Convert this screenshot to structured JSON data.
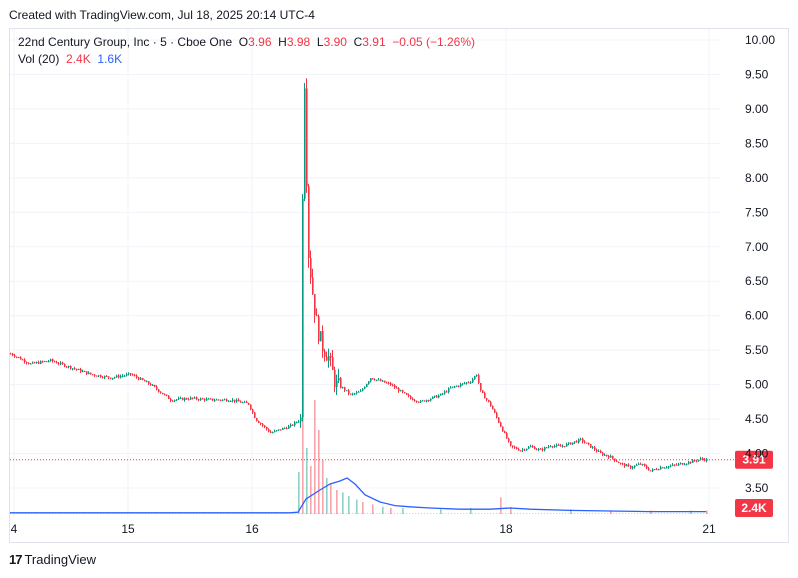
{
  "header": {
    "text": "Created with TradingView.com, Jul 18, 2025 20:14 UTC-4"
  },
  "legend": {
    "symbol": "22nd Century Group, Inc · 5 · Cboe One",
    "o_label": "O",
    "o_value": "3.96",
    "h_label": "H",
    "h_value": "3.98",
    "l_label": "L",
    "l_value": "3.90",
    "c_label": "C",
    "c_value": "3.91",
    "change": "−0.05 (−1.26%)",
    "vol_label": "Vol (20)",
    "vol_value": "2.4K",
    "vol_ma_value": "1.6K"
  },
  "footer": {
    "brand": "TradingView"
  },
  "colors": {
    "up": "#089981",
    "down": "#f23645",
    "vol_ma": "#2962ff",
    "last_price": "#f23645"
  },
  "chart_data": {
    "type": "candlestick",
    "yaxis_ticks": [
      "10.00",
      "9.50",
      "9.00",
      "8.50",
      "8.00",
      "7.50",
      "7.00",
      "6.50",
      "6.00",
      "5.50",
      "5.00",
      "4.50",
      "4.00",
      "3.50"
    ],
    "ylim": [
      3.3,
      10.05
    ],
    "xaxis_ticks": [
      "4",
      "15",
      "16",
      "18",
      "21"
    ],
    "last_price_label": "3.91",
    "last_volume_label": "2.4K",
    "grid": true,
    "price_path": [
      [
        0,
        5.45
      ],
      [
        20,
        5.3
      ],
      [
        40,
        5.35
      ],
      [
        60,
        5.25
      ],
      [
        80,
        5.15
      ],
      [
        100,
        5.1
      ],
      [
        120,
        5.15
      ],
      [
        140,
        5.0
      ],
      [
        160,
        4.78
      ],
      [
        180,
        4.8
      ],
      [
        200,
        4.78
      ],
      [
        220,
        4.78
      ],
      [
        238,
        4.72
      ],
      [
        245,
        4.5
      ],
      [
        260,
        4.3
      ],
      [
        280,
        4.4
      ],
      [
        290,
        4.5
      ],
      [
        292,
        7.8
      ],
      [
        294,
        9.4
      ],
      [
        296,
        8.0
      ],
      [
        298,
        6.9
      ],
      [
        303,
        6.2
      ],
      [
        307,
        5.8
      ],
      [
        312,
        5.55
      ],
      [
        318,
        5.4
      ],
      [
        325,
        5.0
      ],
      [
        332,
        4.95
      ],
      [
        340,
        4.85
      ],
      [
        350,
        4.9
      ],
      [
        360,
        5.1
      ],
      [
        370,
        5.05
      ],
      [
        380,
        5.0
      ],
      [
        390,
        4.9
      ],
      [
        400,
        4.8
      ],
      [
        410,
        4.75
      ],
      [
        420,
        4.8
      ],
      [
        430,
        4.85
      ],
      [
        440,
        4.95
      ],
      [
        450,
        5.0
      ],
      [
        460,
        5.05
      ],
      [
        466,
        5.15
      ],
      [
        470,
        4.9
      ],
      [
        480,
        4.7
      ],
      [
        490,
        4.4
      ],
      [
        500,
        4.1
      ],
      [
        510,
        4.05
      ],
      [
        520,
        4.1
      ],
      [
        530,
        4.05
      ],
      [
        540,
        4.12
      ],
      [
        550,
        4.1
      ],
      [
        560,
        4.15
      ],
      [
        570,
        4.2
      ],
      [
        580,
        4.1
      ],
      [
        590,
        4.0
      ],
      [
        600,
        3.95
      ],
      [
        610,
        3.85
      ],
      [
        620,
        3.8
      ],
      [
        630,
        3.85
      ],
      [
        640,
        3.75
      ],
      [
        650,
        3.8
      ],
      [
        660,
        3.82
      ],
      [
        670,
        3.85
      ],
      [
        680,
        3.88
      ],
      [
        690,
        3.92
      ],
      [
        696,
        3.91
      ]
    ],
    "volume_ma_path": [
      [
        0,
        0.02
      ],
      [
        280,
        0.02
      ],
      [
        288,
        0.03
      ],
      [
        296,
        0.25
      ],
      [
        310,
        0.4
      ],
      [
        320,
        0.5
      ],
      [
        330,
        0.55
      ],
      [
        337,
        0.6
      ],
      [
        345,
        0.5
      ],
      [
        355,
        0.32
      ],
      [
        370,
        0.2
      ],
      [
        385,
        0.14
      ],
      [
        400,
        0.12
      ],
      [
        420,
        0.1
      ],
      [
        450,
        0.08
      ],
      [
        480,
        0.08
      ],
      [
        500,
        0.1
      ],
      [
        520,
        0.08
      ],
      [
        560,
        0.06
      ],
      [
        600,
        0.05
      ],
      [
        640,
        0.04
      ],
      [
        696,
        0.04
      ]
    ],
    "volume_spikes": [
      [
        288,
        0.35,
        "up"
      ],
      [
        292,
        1.0,
        "down"
      ],
      [
        296,
        0.55,
        "up"
      ],
      [
        300,
        0.4,
        "down"
      ],
      [
        304,
        0.95,
        "down"
      ],
      [
        308,
        0.7,
        "down"
      ],
      [
        312,
        0.45,
        "down"
      ],
      [
        316,
        0.3,
        "up"
      ],
      [
        320,
        0.25,
        "down"
      ],
      [
        326,
        0.2,
        "down"
      ],
      [
        332,
        0.18,
        "up"
      ],
      [
        338,
        0.15,
        "up"
      ],
      [
        346,
        0.12,
        "up"
      ],
      [
        352,
        0.1,
        "down"
      ],
      [
        362,
        0.08,
        "down"
      ],
      [
        372,
        0.06,
        "up"
      ],
      [
        380,
        0.05,
        "down"
      ],
      [
        392,
        0.05,
        "up"
      ],
      [
        430,
        0.04,
        "up"
      ],
      [
        460,
        0.05,
        "up"
      ],
      [
        490,
        0.14,
        "down"
      ],
      [
        500,
        0.06,
        "down"
      ],
      [
        560,
        0.04,
        "up"
      ],
      [
        600,
        0.03,
        "down"
      ],
      [
        640,
        0.03,
        "down"
      ],
      [
        680,
        0.03,
        "up"
      ],
      [
        696,
        0.03,
        "down"
      ]
    ]
  }
}
